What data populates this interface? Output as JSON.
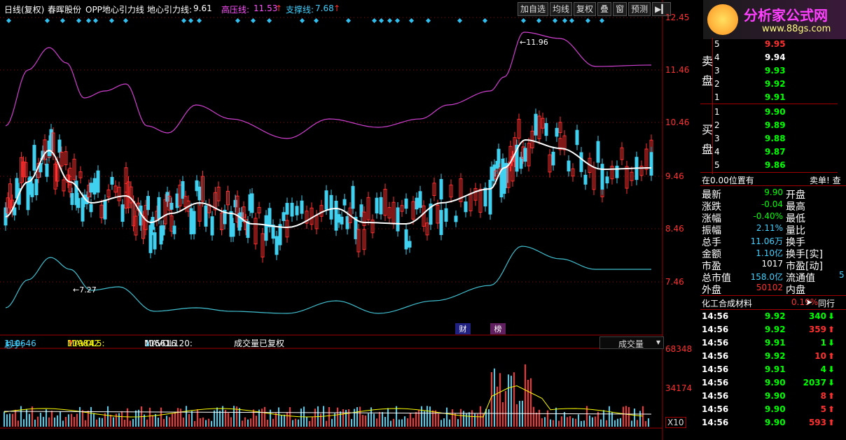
{
  "header": {
    "period": "日线(复权)",
    "stock_name": "春晖股份",
    "indicator": "OPP地心引力线",
    "center_label": "地心引力线:",
    "center_value": "9.61",
    "high_label": "高压线:",
    "high_value": "11.53",
    "support_label": "支撑线:",
    "support_value": "7.68"
  },
  "toolbar": {
    "add": "加自选",
    "ma": "均线",
    "restore": "复权",
    "overlay": "叠",
    "window": "窗",
    "forecast": "预测"
  },
  "logo": {
    "text": "分析家公式网",
    "url": "www.88gs.com"
  },
  "y_axis": [
    "12.45",
    "11.46",
    "10.46",
    "9.46",
    "8.46",
    "7.46"
  ],
  "annotations": {
    "high": "11.96",
    "low": "7.27",
    "cai": "财",
    "bang": "榜"
  },
  "volume": {
    "total_label": "总手:",
    "total_value": "110646",
    "mavol5_label": "MAVOL5:",
    "mavol5_value": "119842",
    "mavol120_label": "MAVOL120:",
    "mavol120_value": "115616",
    "note": "成交量已复权",
    "dropdown": "成交量",
    "axis": [
      "68348",
      "34174"
    ],
    "unit": "X10"
  },
  "orderbook": {
    "sell_side": [
      "卖",
      "盘"
    ],
    "buy_side": [
      "买",
      "盘"
    ],
    "sell": [
      {
        "lv": "5",
        "price": "9.95"
      },
      {
        "lv": "4",
        "price": "9.94"
      },
      {
        "lv": "3",
        "price": "9.93"
      },
      {
        "lv": "2",
        "price": "9.92"
      },
      {
        "lv": "1",
        "price": "9.91"
      }
    ],
    "buy": [
      {
        "lv": "1",
        "price": "9.90"
      },
      {
        "lv": "2",
        "price": "9.89"
      },
      {
        "lv": "3",
        "price": "9.88"
      },
      {
        "lv": "4",
        "price": "9.87"
      },
      {
        "lv": "5",
        "price": "9.86"
      }
    ],
    "position": "在0.00位置有",
    "sell_order": "卖单! 查"
  },
  "quote": [
    {
      "k": "最新",
      "v": "9.90",
      "k2": "开盘"
    },
    {
      "k": "涨跌",
      "v": "-0.04",
      "k2": "最高"
    },
    {
      "k": "涨幅",
      "v": "-0.40%",
      "k2": "最低"
    },
    {
      "k": "振幅",
      "v": "2.11%",
      "k2": "量比"
    },
    {
      "k": "总手",
      "v": "11.06万",
      "k2": "换手"
    },
    {
      "k": "金额",
      "v": "1.10亿",
      "k2": "换手[实]"
    },
    {
      "k": "市盈",
      "v": "1017",
      "k2": "市盈[动]"
    },
    {
      "k": "总市值",
      "v": "158.0亿",
      "k2": "流通值"
    },
    {
      "k": "外盘",
      "v": "50102",
      "k2": "内盘"
    }
  ],
  "quote_extra": {
    "float_value": "5"
  },
  "sector": {
    "name": "化工合成材料",
    "pct": "0.19%",
    "same": "同行"
  },
  "ticks": [
    {
      "t": "14:56",
      "p": "9.92",
      "v": "340",
      "dir": "down"
    },
    {
      "t": "14:56",
      "p": "9.92",
      "v": "359",
      "dir": "up"
    },
    {
      "t": "14:56",
      "p": "9.91",
      "v": "1",
      "dir": "down"
    },
    {
      "t": "14:56",
      "p": "9.92",
      "v": "10",
      "dir": "up"
    },
    {
      "t": "14:56",
      "p": "9.91",
      "v": "4",
      "dir": "down"
    },
    {
      "t": "14:56",
      "p": "9.90",
      "v": "2037",
      "dir": "down"
    },
    {
      "t": "14:56",
      "p": "9.90",
      "v": "8",
      "dir": "up"
    },
    {
      "t": "14:56",
      "p": "9.90",
      "v": "5",
      "dir": "up"
    },
    {
      "t": "14:56",
      "p": "9.90",
      "v": "593",
      "dir": "up"
    }
  ],
  "colors": {
    "up": "#ff3030",
    "down": "#00ff00",
    "center": "#ffffff",
    "high": "#d040d0",
    "support": "#40c0d0",
    "grid": "#a00000"
  }
}
